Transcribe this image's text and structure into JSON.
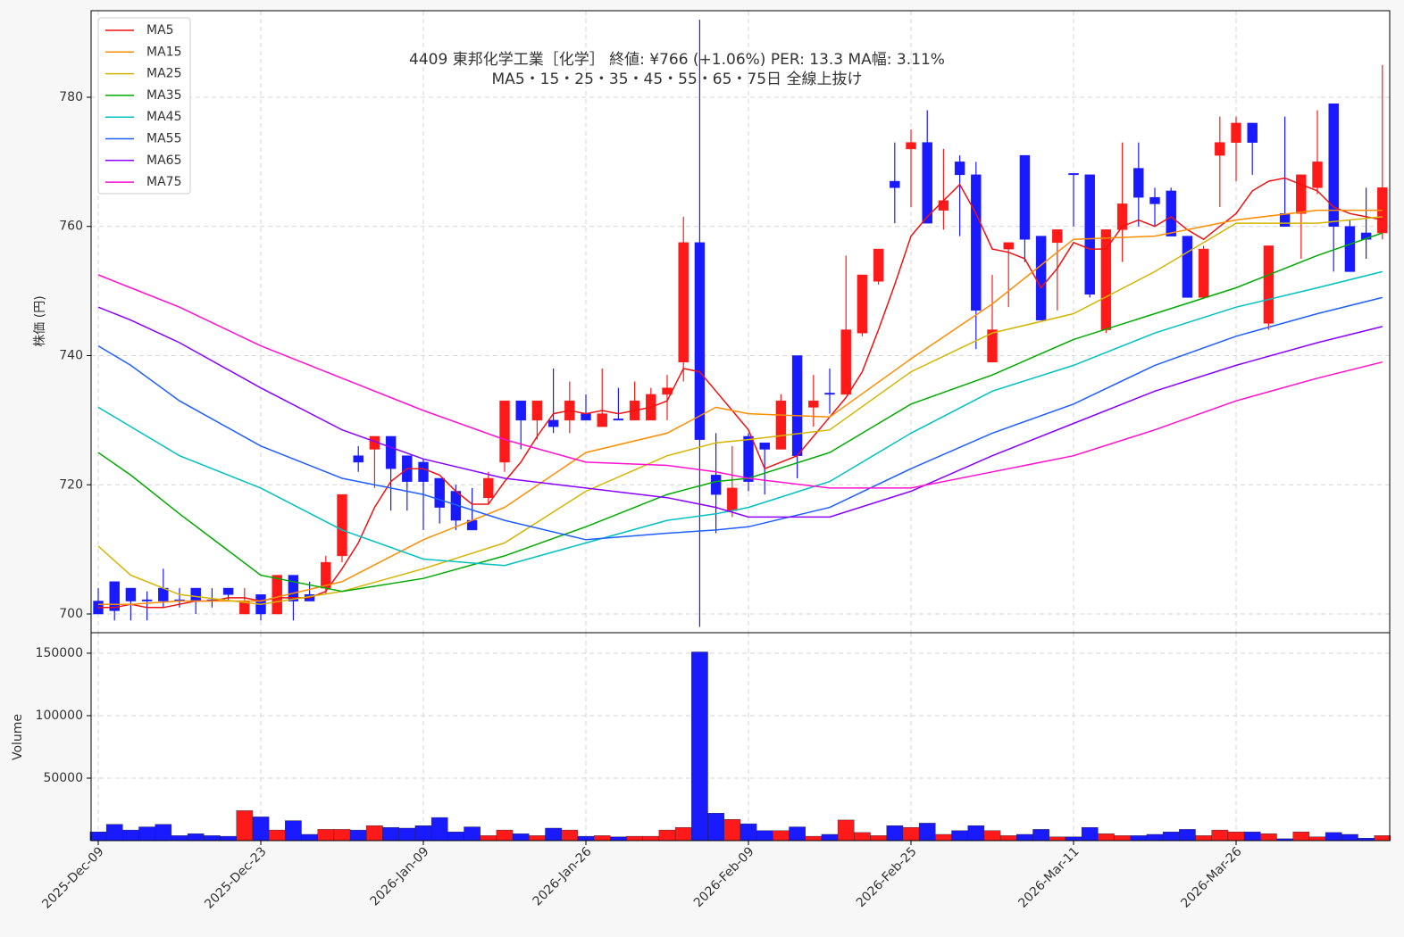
{
  "chart_data": [
    {
      "type": "candlestick",
      "title": "4409  東邦化学工業［化学］  終値: ¥766 (+1.06%)   PER: 13.3  MA幅: 3.11%",
      "subtitle": "MA5・15・25・35・45・55・65・75日 全線上抜け",
      "ylabel": "株価 (円)",
      "x": [
        0,
        1,
        2,
        3,
        4,
        5,
        6,
        7,
        8,
        9,
        10,
        11,
        12,
        13,
        14,
        15,
        16,
        17,
        18,
        19,
        20,
        21,
        22,
        23,
        24,
        25,
        26,
        27,
        28,
        29,
        30,
        31,
        32,
        33,
        34,
        35,
        36,
        37,
        38,
        39,
        40,
        41,
        42,
        43,
        44,
        45,
        46,
        47,
        48,
        49,
        50,
        51,
        52,
        53,
        54,
        55,
        56,
        57,
        58,
        59,
        60,
        61,
        62,
        63,
        64,
        65,
        66,
        67,
        68,
        69,
        70,
        71,
        72,
        73,
        74,
        75,
        76,
        77,
        78,
        79
      ],
      "open": [
        702,
        705,
        704,
        702.2,
        704,
        702.2,
        704,
        702.2,
        704,
        700,
        703,
        700,
        706,
        703,
        704,
        709,
        724.5,
        725.5,
        727.5,
        724.5,
        723.5,
        721,
        719,
        714.5,
        718,
        723.5,
        733,
        730,
        730,
        730,
        731,
        729,
        730.2,
        730,
        730,
        734,
        739,
        757.5,
        721.5,
        716,
        727.5,
        726.5,
        725.5,
        740,
        732,
        734.2,
        734,
        743.5,
        751.5,
        767,
        772,
        773,
        762.5,
        770,
        768,
        739,
        756.5,
        771,
        758.5,
        757.5,
        768.2,
        768,
        744,
        759.5,
        769,
        764.5,
        765.5,
        758.5,
        749,
        771,
        773,
        776,
        745,
        762,
        762,
        766,
        779,
        760,
        759,
        759
      ],
      "high": [
        704,
        705,
        704,
        703.5,
        707,
        704,
        704,
        704,
        704,
        704,
        703,
        706,
        706,
        705,
        709,
        718.5,
        726,
        727.5,
        727.5,
        724.5,
        724,
        721,
        720,
        719.5,
        722,
        733,
        733,
        733,
        738,
        736,
        734,
        738,
        735,
        736,
        735,
        737,
        761.5,
        792,
        728,
        726,
        728,
        726.5,
        734,
        740,
        737,
        738,
        755.5,
        752.5,
        756.5,
        773,
        775,
        778,
        772,
        771,
        770,
        752.5,
        757.5,
        771,
        758.5,
        759.5,
        768.2,
        768,
        759.5,
        773,
        773,
        766,
        766,
        758.5,
        757,
        777,
        777,
        776,
        757,
        777,
        768,
        778,
        779,
        761,
        766,
        785
      ],
      "low": [
        700,
        699,
        699,
        699,
        701,
        701,
        700,
        701,
        702,
        700,
        699,
        700,
        699,
        702,
        703,
        708,
        722,
        719.5,
        716,
        716,
        713,
        714,
        713,
        713,
        717,
        722,
        725.5,
        727,
        728,
        728,
        730,
        729,
        730,
        730,
        730,
        730,
        736,
        698,
        712.5,
        715,
        719,
        718.5,
        725.5,
        721,
        729,
        731,
        734,
        743,
        751,
        760.5,
        763,
        760.5,
        759.5,
        758.5,
        741,
        739,
        747.5,
        754.5,
        745.5,
        747,
        760,
        749,
        743.5,
        754.5,
        760,
        760,
        758.5,
        749,
        749,
        763,
        767,
        768,
        744,
        760,
        755,
        765,
        753,
        753,
        755,
        758
      ],
      "close": [
        700,
        700.5,
        702,
        702,
        702,
        702,
        702,
        702,
        703,
        702,
        700,
        706,
        702,
        702,
        708,
        718.5,
        723.5,
        727.5,
        722.5,
        720.5,
        720.5,
        716.5,
        714.5,
        713,
        721,
        733,
        730,
        733,
        729,
        733,
        730,
        731,
        730,
        733,
        734,
        735,
        757.5,
        727,
        718.5,
        719.5,
        720.5,
        725.5,
        733,
        724.5,
        733,
        734,
        744,
        752.5,
        756.5,
        766,
        773,
        760.5,
        764,
        768,
        747,
        744,
        757.5,
        758,
        745.5,
        759.5,
        768,
        749.5,
        759.5,
        763.5,
        764.5,
        763.5,
        758.5,
        749,
        756.5,
        773,
        776,
        773,
        757,
        760,
        768,
        770,
        760,
        753,
        758,
        766
      ],
      "up_color": "#ff1a1a",
      "down_color": "#1a1aff",
      "series": [
        {
          "name": "MA5",
          "color": "#ee1111",
          "values": [
            701,
            701,
            701.5,
            701,
            701,
            701.5,
            702,
            702,
            702.5,
            702.5,
            702,
            702.5,
            702.5,
            702.5,
            703.5,
            707,
            711,
            716.5,
            720.5,
            722.5,
            722.5,
            721.5,
            719,
            717,
            717,
            720.5,
            723.5,
            727.5,
            731,
            731.5,
            731,
            731.5,
            731,
            731.5,
            732,
            733,
            738,
            737.5,
            734.5,
            731.5,
            728.5,
            722.5,
            723.5,
            724.5,
            727.5,
            730.5,
            733.5,
            737.5,
            744,
            751,
            758.5,
            761.5,
            764,
            766.5,
            762,
            756.5,
            756,
            755,
            750.5,
            753.5,
            757.5,
            756.5,
            756.5,
            760,
            761,
            760,
            761.5,
            759.5,
            758,
            760,
            762,
            765.5,
            767,
            767.5,
            766.5,
            765.5,
            763,
            762,
            761.5,
            761
          ]
        },
        {
          "name": "MA15",
          "color": "#ff8c00",
          "x": [
            0,
            2,
            5,
            10,
            15,
            20,
            25,
            30,
            35,
            38,
            40,
            45,
            50,
            55,
            60,
            65,
            70,
            75,
            79
          ],
          "values": [
            701.5,
            701.5,
            702,
            702,
            705,
            711.5,
            716.5,
            725,
            728,
            732,
            731,
            730.5,
            739.5,
            748,
            758,
            758.5,
            761,
            762.5,
            762.5
          ]
        },
        {
          "name": "MA25",
          "color": "#d4b400",
          "x": [
            0,
            2,
            5,
            10,
            15,
            20,
            25,
            30,
            35,
            38,
            40,
            45,
            50,
            55,
            60,
            65,
            70,
            75,
            79
          ],
          "values": [
            710.5,
            706,
            703,
            701.5,
            703.5,
            707,
            711,
            719,
            724.5,
            726.5,
            727,
            728.5,
            737.5,
            743.5,
            746.5,
            753,
            760.5,
            760.5,
            761.5
          ]
        },
        {
          "name": "MA35",
          "color": "#00aa00",
          "x": [
            0,
            2,
            5,
            10,
            15,
            20,
            25,
            30,
            35,
            38,
            40,
            45,
            50,
            55,
            60,
            65,
            70,
            75,
            79
          ],
          "values": [
            725,
            721.5,
            715.5,
            706,
            703.5,
            705.5,
            709,
            713.5,
            718.5,
            720.5,
            721,
            725,
            732.5,
            737,
            742.5,
            746.5,
            750.5,
            755.5,
            759
          ]
        },
        {
          "name": "MA45",
          "color": "#00c0c0",
          "x": [
            0,
            2,
            5,
            10,
            15,
            20,
            25,
            30,
            35,
            38,
            40,
            45,
            50,
            55,
            60,
            65,
            70,
            75,
            79
          ],
          "values": [
            732,
            729,
            724.5,
            719.5,
            713,
            708.5,
            707.5,
            711,
            714.5,
            715.5,
            716.5,
            720.5,
            728,
            734.5,
            738.5,
            743.5,
            747.5,
            750.5,
            753
          ]
        },
        {
          "name": "MA55",
          "color": "#1f5fff",
          "x": [
            0,
            2,
            5,
            10,
            15,
            20,
            25,
            30,
            35,
            38,
            40,
            45,
            50,
            55,
            60,
            65,
            70,
            75,
            79
          ],
          "values": [
            741.5,
            738.5,
            733,
            726,
            721,
            718.5,
            714.5,
            711.5,
            712.5,
            713,
            713.5,
            716.5,
            722.5,
            728,
            732.5,
            738.5,
            743,
            746.5,
            749
          ]
        },
        {
          "name": "MA65",
          "color": "#8a00ff",
          "x": [
            0,
            2,
            5,
            10,
            15,
            20,
            25,
            30,
            35,
            38,
            40,
            45,
            50,
            55,
            60,
            65,
            70,
            75,
            79
          ],
          "values": [
            747.5,
            745.5,
            742,
            735,
            728.5,
            724,
            721,
            719.5,
            718,
            716.5,
            715,
            715,
            719,
            724.5,
            729.5,
            734.5,
            738.5,
            742,
            744.5
          ]
        },
        {
          "name": "MA75",
          "color": "#ff10d0",
          "x": [
            0,
            2,
            5,
            10,
            15,
            20,
            25,
            30,
            35,
            38,
            40,
            45,
            50,
            55,
            60,
            65,
            70,
            75,
            79
          ],
          "values": [
            752.5,
            750.5,
            747.5,
            741.5,
            736.5,
            731.5,
            727,
            723.5,
            723,
            722,
            721,
            719.5,
            719.5,
            722,
            724.5,
            728.5,
            733,
            736.5,
            739
          ]
        }
      ],
      "xlim": [
        -0.44,
        79.45
      ],
      "ylim": [
        697.1,
        793.4
      ],
      "yticks": [
        700,
        720,
        740,
        760,
        780
      ],
      "grid": true,
      "legend": "upper left"
    },
    {
      "type": "bar",
      "ylabel": "Volume",
      "values": [
        7000,
        13000,
        8500,
        11000,
        13000,
        4000,
        5500,
        4000,
        3500,
        24000,
        19000,
        8500,
        16000,
        5000,
        9000,
        9000,
        8500,
        12000,
        10500,
        10000,
        12000,
        18500,
        7000,
        11000,
        4000,
        8500,
        5500,
        4000,
        10000,
        8500,
        3500,
        4000,
        3000,
        3500,
        3500,
        8500,
        10500,
        151000,
        22000,
        17000,
        13500,
        8000,
        8000,
        11000,
        3500,
        5000,
        16500,
        6500,
        4000,
        12000,
        10500,
        14000,
        5000,
        8000,
        12000,
        8000,
        4000,
        5000,
        9000,
        3000,
        3000,
        10500,
        5500,
        4000,
        4000,
        5000,
        7000,
        9000,
        4000,
        8500,
        7000,
        7000,
        5500,
        1500,
        7000,
        3000,
        6500,
        5000,
        2000,
        4000
      ],
      "ylim": [
        0,
        166400
      ],
      "yticks": [
        50000,
        100000,
        150000
      ],
      "xticks": [
        {
          "value": 0,
          "label": "2025-Dec-09"
        },
        {
          "value": 10,
          "label": "2025-Dec-23"
        },
        {
          "value": 20,
          "label": "2026-Jan-09"
        },
        {
          "value": 30,
          "label": "2026-Jan-26"
        },
        {
          "value": 40,
          "label": "2026-Feb-09"
        },
        {
          "value": 50,
          "label": "2026-Feb-25"
        },
        {
          "value": 60,
          "label": "2026-Mar-11"
        },
        {
          "value": 70,
          "label": "2026-Mar-26"
        }
      ],
      "grid": true
    }
  ]
}
